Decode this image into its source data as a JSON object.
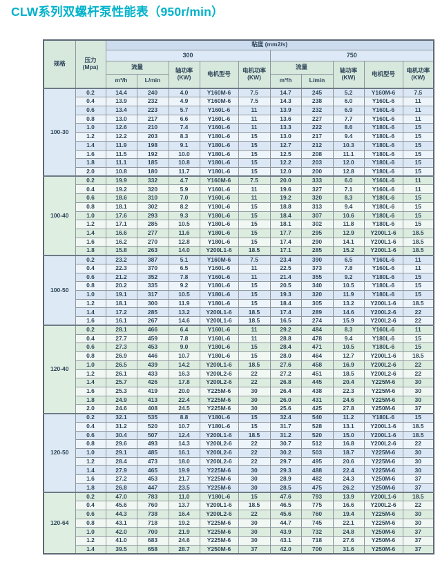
{
  "title": "CLW系列双螺杆泵性能表（950r/min）",
  "colors": {
    "title": "#00b2ca",
    "text": "#2f4659",
    "border_inner": "#8e969e",
    "border_outer": "#5d6873",
    "header_viscosity_band": "#cddcee",
    "header_value_band": "#dde9f6",
    "header_green": "#d7e8dd",
    "row_blue_tint": "#dbe7f4",
    "row_blue_alt": "#edf4fa",
    "row_green_tint": "#dcecdf",
    "row_green_alt": "#f1f7f2",
    "spec_blue": "#dde9f5",
    "spec_green": "#deeee1"
  },
  "table": {
    "headers": {
      "spec": "规格",
      "pressure": "压力\n(Mpa)",
      "viscosity": "粘度 (mm2/s)",
      "v300": "300",
      "v750": "750",
      "flow": "流量",
      "shaft_power": "轴功率\n(KW)",
      "motor_model": "电机型号",
      "motor_power": "电机功率\n(KW)",
      "m3h": "m³/h",
      "lmin": "L/min"
    },
    "groups": [
      {
        "spec": "100-30",
        "tint": "blue",
        "rows": [
          [
            "0.2",
            "14.4",
            "240",
            "4.0",
            "Y160M-6",
            "7.5",
            "14.7",
            "245",
            "5.2",
            "Y160M-6",
            "7.5"
          ],
          [
            "0.4",
            "13.9",
            "232",
            "4.9",
            "Y160M-6",
            "7.5",
            "14.3",
            "238",
            "6.0",
            "Y160L-6",
            "11"
          ],
          [
            "0.6",
            "13.4",
            "223",
            "5.7",
            "Y160L-6",
            "11",
            "13.9",
            "232",
            "6.9",
            "Y160L-6",
            "11"
          ],
          [
            "0.8",
            "13.0",
            "217",
            "6.6",
            "Y160L-6",
            "11",
            "13.6",
            "227",
            "7.7",
            "Y160L-6",
            "11"
          ],
          [
            "1.0",
            "12.6",
            "210",
            "7.4",
            "Y160L-6",
            "11",
            "13.3",
            "222",
            "8.6",
            "Y180L-6",
            "15"
          ],
          [
            "1.2",
            "12.2",
            "203",
            "8.3",
            "Y180L-6",
            "15",
            "13.0",
            "217",
            "9.4",
            "Y180L-6",
            "15"
          ],
          [
            "1.4",
            "11.9",
            "198",
            "9.1",
            "Y180L-6",
            "15",
            "12.7",
            "212",
            "10.3",
            "Y180L-6",
            "15"
          ],
          [
            "1.6",
            "11.5",
            "192",
            "10.0",
            "Y180L-6",
            "15",
            "12.5",
            "208",
            "11.1",
            "Y180L-6",
            "15"
          ],
          [
            "1.8",
            "11.1",
            "185",
            "10.8",
            "Y180L-6",
            "15",
            "12.2",
            "203",
            "12.0",
            "Y180L-6",
            "15"
          ],
          [
            "2.0",
            "10.8",
            "180",
            "11.7",
            "Y180L-6",
            "15",
            "12.0",
            "200",
            "12.8",
            "Y180L-6",
            "15"
          ]
        ]
      },
      {
        "spec": "100-40",
        "tint": "green",
        "rows": [
          [
            "0.2",
            "19.9",
            "332",
            "4.7",
            "Y160M-6",
            "7.5",
            "20.0",
            "333",
            "6.0",
            "Y160L-6",
            "11"
          ],
          [
            "0.4",
            "19.2",
            "320",
            "5.9",
            "Y160L-6",
            "11",
            "19.6",
            "327",
            "7.1",
            "Y160L-6",
            "11"
          ],
          [
            "0.6",
            "18.6",
            "310",
            "7.0",
            "Y160L-6",
            "11",
            "19.2",
            "320",
            "8.3",
            "Y180L-6",
            "15"
          ],
          [
            "0.8",
            "18.1",
            "302",
            "8.2",
            "Y180L-6",
            "15",
            "18.8",
            "313",
            "9.4",
            "Y180L-6",
            "15"
          ],
          [
            "1.0",
            "17.6",
            "293",
            "9.3",
            "Y180L-6",
            "15",
            "18.4",
            "307",
            "10.6",
            "Y180L-6",
            "15"
          ],
          [
            "1.2",
            "17.1",
            "285",
            "10.5",
            "Y180L-6",
            "15",
            "18.1",
            "302",
            "11.8",
            "Y180L-6",
            "15"
          ],
          [
            "1.4",
            "16.6",
            "277",
            "11.6",
            "Y180L-6",
            "15",
            "17.7",
            "295",
            "12.9",
            "Y200L1-6",
            "18.5"
          ],
          [
            "1.6",
            "16.2",
            "270",
            "12.8",
            "Y180L-6",
            "15",
            "17.4",
            "290",
            "14.1",
            "Y200L1-6",
            "18.5"
          ],
          [
            "1.8",
            "15.8",
            "263",
            "14.0",
            "Y200L1-6",
            "18.5",
            "17.1",
            "285",
            "15.2",
            "Y200L1-6",
            "18.5"
          ]
        ]
      },
      {
        "spec": "100-50",
        "tint": "blue",
        "rows": [
          [
            "0.2",
            "23.2",
            "387",
            "5.1",
            "Y160M-6",
            "7.5",
            "23.4",
            "390",
            "6.5",
            "Y160L-6",
            "11"
          ],
          [
            "0.4",
            "22.3",
            "370",
            "6.5",
            "Y160L-6",
            "11",
            "22.5",
            "373",
            "7.8",
            "Y160L-6",
            "11"
          ],
          [
            "0.6",
            "21.2",
            "352",
            "7.8",
            "Y160L-6",
            "11",
            "21.4",
            "355",
            "9.2",
            "Y180L-6",
            "15"
          ],
          [
            "0.8",
            "20.2",
            "335",
            "9.2",
            "Y180L-6",
            "15",
            "20.5",
            "340",
            "10.5",
            "Y180L-6",
            "15"
          ],
          [
            "1.0",
            "19.1",
            "317",
            "10.5",
            "Y180L-6",
            "15",
            "19.3",
            "320",
            "11.9",
            "Y180L-6",
            "15"
          ],
          [
            "1.2",
            "18.1",
            "300",
            "11.9",
            "Y180L-6",
            "15",
            "18.4",
            "305",
            "13.2",
            "Y200L1-6",
            "18.5"
          ],
          [
            "1.4",
            "17.2",
            "285",
            "13.2",
            "Y200L1-6",
            "18.5",
            "17.4",
            "289",
            "14.6",
            "Y200L2-6",
            "22"
          ],
          [
            "1.6",
            "16.1",
            "267",
            "14.6",
            "Y200L1-6",
            "18.5",
            "16.5",
            "274",
            "15.9",
            "Y200L2-6",
            "22"
          ]
        ]
      },
      {
        "spec": "120-40",
        "tint": "green",
        "rows": [
          [
            "0.2",
            "28.1",
            "466",
            "6.4",
            "Y160L-6",
            "11",
            "29.2",
            "484",
            "8.3",
            "Y160L-6",
            "11"
          ],
          [
            "0.4",
            "27.7",
            "459",
            "7.8",
            "Y160L-6",
            "11",
            "28.8",
            "478",
            "9.4",
            "Y180L-6",
            "15"
          ],
          [
            "0.6",
            "27.3",
            "453",
            "9.0",
            "Y180L-6",
            "15",
            "28.4",
            "471",
            "10.5",
            "Y180L-6",
            "15"
          ],
          [
            "0.8",
            "26.9",
            "446",
            "10.7",
            "Y180L-6",
            "15",
            "28.0",
            "464",
            "12.7",
            "Y200L1-6",
            "18.5"
          ],
          [
            "1.0",
            "26.5",
            "439",
            "14.2",
            "Y200L1-6",
            "18.5",
            "27.6",
            "458",
            "16.9",
            "Y200L2-6",
            "22"
          ],
          [
            "1.2",
            "26.1",
            "433",
            "16.3",
            "Y200L2-6",
            "22",
            "27.2",
            "451",
            "18.5",
            "Y200L2-6",
            "22"
          ],
          [
            "1.4",
            "25.7",
            "426",
            "17.8",
            "Y200L2-6",
            "22",
            "26.8",
            "445",
            "20.4",
            "Y225M-6",
            "30"
          ],
          [
            "1.6",
            "25.3",
            "419",
            "20.0",
            "Y225M-6",
            "30",
            "26.4",
            "438",
            "22.3",
            "Y225M-6",
            "30"
          ],
          [
            "1.8",
            "24.9",
            "413",
            "22.4",
            "Y225M-6",
            "30",
            "26.0",
            "431",
            "24.6",
            "Y225M-6",
            "30"
          ],
          [
            "2.0",
            "24.6",
            "408",
            "24.5",
            "Y225M-6",
            "30",
            "25.6",
            "425",
            "27.8",
            "Y250M-6",
            "37"
          ]
        ]
      },
      {
        "spec": "120-50",
        "tint": "blue",
        "rows": [
          [
            "0.2",
            "32.1",
            "535",
            "8.8",
            "Y180L-6",
            "15",
            "32.4",
            "540",
            "11.2",
            "Y180L-6",
            "15"
          ],
          [
            "0.4",
            "31.2",
            "520",
            "10.7",
            "Y180L-6",
            "15",
            "31.7",
            "528",
            "13.1",
            "Y200L1-6",
            "18.5"
          ],
          [
            "0.6",
            "30.4",
            "507",
            "12.4",
            "Y200L1-6",
            "18.5",
            "31.2",
            "520",
            "15.0",
            "Y200L1-6",
            "18.5"
          ],
          [
            "0.8",
            "29.6",
            "493",
            "14.3",
            "Y200L2-6",
            "22",
            "30.7",
            "512",
            "16.8",
            "Y200L2-6",
            "22"
          ],
          [
            "1.0",
            "29.1",
            "485",
            "16.1",
            "Y200L2-6",
            "22",
            "30.2",
            "503",
            "18.7",
            "Y225M-6",
            "30"
          ],
          [
            "1.2",
            "28.4",
            "473",
            "18.0",
            "Y200L2-6",
            "22",
            "29.7",
            "495",
            "20.6",
            "Y225M-6",
            "30"
          ],
          [
            "1.4",
            "27.9",
            "465",
            "19.9",
            "Y225M-6",
            "30",
            "29.3",
            "488",
            "22.4",
            "Y225M-6",
            "30"
          ],
          [
            "1.6",
            "27.2",
            "453",
            "21.7",
            "Y225M-6",
            "30",
            "28.9",
            "482",
            "24.3",
            "Y250M-6",
            "37"
          ],
          [
            "1.8",
            "26.8",
            "447",
            "23.5",
            "Y225M-6",
            "30",
            "28.5",
            "475",
            "26.2",
            "Y250M-6",
            "37"
          ]
        ]
      },
      {
        "spec": "120-64",
        "tint": "green",
        "rows": [
          [
            "0.2",
            "47.0",
            "783",
            "11.0",
            "Y180L-6",
            "15",
            "47.6",
            "793",
            "13.9",
            "Y200L1-6",
            "18.5"
          ],
          [
            "0.4",
            "45.6",
            "760",
            "13.7",
            "Y200L1-6",
            "18.5",
            "46.5",
            "775",
            "16.6",
            "Y200L2-6",
            "22"
          ],
          [
            "0.6",
            "44.3",
            "738",
            "16.4",
            "Y200L2-6",
            "22",
            "45.6",
            "760",
            "19.4",
            "Y225M-6",
            "30"
          ],
          [
            "0.8",
            "43.1",
            "718",
            "19.2",
            "Y225M-6",
            "30",
            "44.7",
            "745",
            "22.1",
            "Y225M-6",
            "30"
          ],
          [
            "1.0",
            "42.0",
            "700",
            "21.9",
            "Y225M-6",
            "30",
            "43.9",
            "732",
            "24.8",
            "Y250M-6",
            "37"
          ],
          [
            "1.2",
            "41.0",
            "683",
            "24.6",
            "Y225M-6",
            "30",
            "43.1",
            "718",
            "27.6",
            "Y250M-6",
            "37"
          ],
          [
            "1.4",
            "39.5",
            "658",
            "28.7",
            "Y250M-6",
            "37",
            "42.0",
            "700",
            "31.6",
            "Y250M-6",
            "37"
          ]
        ]
      }
    ]
  }
}
